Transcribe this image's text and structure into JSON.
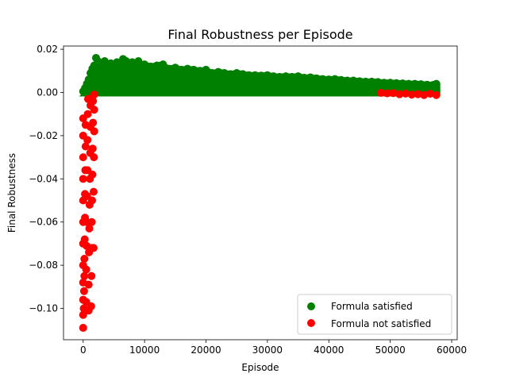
{
  "chart_data": {
    "type": "scatter",
    "title": "Final Robustness per Episode",
    "xlabel": "Episode",
    "ylabel": "Final Robustness",
    "xlim": [
      -3200,
      60900
    ],
    "ylim": [
      -0.1145,
      0.0215
    ],
    "x_ticks": [
      {
        "value": 0,
        "label": "0"
      },
      {
        "value": 10000,
        "label": "10000"
      },
      {
        "value": 20000,
        "label": "20000"
      },
      {
        "value": 30000,
        "label": "30000"
      },
      {
        "value": 40000,
        "label": "40000"
      },
      {
        "value": 50000,
        "label": "50000"
      },
      {
        "value": 60000,
        "label": "60000"
      }
    ],
    "y_ticks": [
      {
        "value": 0.02,
        "label": "0.02"
      },
      {
        "value": 0.0,
        "label": "0.00"
      },
      {
        "value": -0.02,
        "label": "−0.02"
      },
      {
        "value": -0.04,
        "label": "−0.04"
      },
      {
        "value": -0.06,
        "label": "−0.06"
      },
      {
        "value": -0.08,
        "label": "−0.08"
      },
      {
        "value": -0.1,
        "label": "−0.10"
      }
    ],
    "grid": false,
    "legend_position": "lower-right",
    "series": [
      {
        "name": "Formula satisfied",
        "color": "#008000",
        "points": [
          [
            0,
            0.0005
          ],
          [
            300,
            0.002
          ],
          [
            600,
            0.004
          ],
          [
            900,
            0.006
          ],
          [
            1200,
            0.009
          ],
          [
            1500,
            0.011
          ],
          [
            1800,
            0.0125
          ],
          [
            2100,
            0.016
          ],
          [
            2400,
            0.0145
          ],
          [
            2700,
            0.0135
          ],
          [
            3000,
            0.0125
          ],
          [
            3500,
            0.0145
          ],
          [
            4000,
            0.012
          ],
          [
            4500,
            0.0135
          ],
          [
            5000,
            0.0125
          ],
          [
            5500,
            0.014
          ],
          [
            6000,
            0.0125
          ],
          [
            6500,
            0.0155
          ],
          [
            7000,
            0.0145
          ],
          [
            7500,
            0.0135
          ],
          [
            8000,
            0.014
          ],
          [
            8500,
            0.012
          ],
          [
            9000,
            0.0145
          ],
          [
            9500,
            0.0125
          ],
          [
            10000,
            0.013
          ],
          [
            11000,
            0.012
          ],
          [
            12000,
            0.0125
          ],
          [
            13000,
            0.013
          ],
          [
            14000,
            0.011
          ],
          [
            15000,
            0.0115
          ],
          [
            16000,
            0.0105
          ],
          [
            17000,
            0.011
          ],
          [
            18000,
            0.0105
          ],
          [
            19000,
            0.01
          ],
          [
            20000,
            0.0105
          ],
          [
            21000,
            0.009
          ],
          [
            22000,
            0.0095
          ],
          [
            23000,
            0.009
          ],
          [
            24000,
            0.0085
          ],
          [
            25000,
            0.009
          ],
          [
            26000,
            0.0085
          ],
          [
            27000,
            0.008
          ],
          [
            28000,
            0.008
          ],
          [
            29000,
            0.0078
          ],
          [
            30000,
            0.008
          ],
          [
            31000,
            0.0075
          ],
          [
            32000,
            0.0072
          ],
          [
            33000,
            0.0075
          ],
          [
            34000,
            0.0072
          ],
          [
            35000,
            0.0075
          ],
          [
            36000,
            0.0068
          ],
          [
            37000,
            0.007
          ],
          [
            38000,
            0.0065
          ],
          [
            39000,
            0.0062
          ],
          [
            40000,
            0.006
          ],
          [
            41000,
            0.0062
          ],
          [
            42000,
            0.0058
          ],
          [
            43000,
            0.0055
          ],
          [
            44000,
            0.0055
          ],
          [
            45000,
            0.0052
          ],
          [
            46000,
            0.005
          ],
          [
            47000,
            0.005
          ],
          [
            48000,
            0.0048
          ],
          [
            49000,
            0.0045
          ],
          [
            50000,
            0.0045
          ],
          [
            51000,
            0.0043
          ],
          [
            52000,
            0.0042
          ],
          [
            53000,
            0.004
          ],
          [
            54000,
            0.004
          ],
          [
            55000,
            0.0038
          ],
          [
            56000,
            0.0036
          ],
          [
            57000,
            0.0035
          ],
          [
            57500,
            0.004
          ]
        ]
      },
      {
        "name": "Formula not satisfied",
        "color": "#ff0000",
        "points": [
          [
            0,
            -0.109
          ],
          [
            0,
            -0.103
          ],
          [
            0,
            -0.096
          ],
          [
            0,
            -0.088
          ],
          [
            0,
            -0.08
          ],
          [
            0,
            -0.07
          ],
          [
            0,
            -0.06
          ],
          [
            0,
            -0.05
          ],
          [
            0,
            -0.04
          ],
          [
            0,
            -0.03
          ],
          [
            0,
            -0.02
          ],
          [
            0,
            -0.012
          ],
          [
            100,
            -0.1
          ],
          [
            150,
            -0.092
          ],
          [
            200,
            -0.085
          ],
          [
            200,
            -0.077
          ],
          [
            250,
            -0.068
          ],
          [
            300,
            -0.058
          ],
          [
            300,
            -0.047
          ],
          [
            350,
            -0.036
          ],
          [
            400,
            -0.025
          ],
          [
            400,
            -0.015
          ],
          [
            500,
            -0.097
          ],
          [
            500,
            -0.082
          ],
          [
            550,
            -0.071
          ],
          [
            600,
            -0.06
          ],
          [
            650,
            -0.048
          ],
          [
            700,
            -0.036
          ],
          [
            700,
            -0.022
          ],
          [
            750,
            -0.01
          ],
          [
            800,
            -0.003
          ],
          [
            900,
            -0.101
          ],
          [
            900,
            -0.089
          ],
          [
            950,
            -0.074
          ],
          [
            1000,
            -0.063
          ],
          [
            1050,
            -0.052
          ],
          [
            1100,
            -0.04
          ],
          [
            1150,
            -0.028
          ],
          [
            1200,
            -0.016
          ],
          [
            1200,
            -0.006
          ],
          [
            1300,
            -0.099
          ],
          [
            1350,
            -0.085
          ],
          [
            1400,
            -0.072
          ],
          [
            1400,
            -0.06
          ],
          [
            1450,
            -0.05
          ],
          [
            1500,
            -0.038
          ],
          [
            1550,
            -0.026
          ],
          [
            1600,
            -0.014
          ],
          [
            1600,
            -0.004
          ],
          [
            1700,
            -0.072
          ],
          [
            1700,
            -0.046
          ],
          [
            1750,
            -0.03
          ],
          [
            1800,
            -0.018
          ],
          [
            1800,
            -0.008
          ],
          [
            1800,
            -0.001
          ],
          [
            48500,
            -0.0002
          ],
          [
            49500,
            -0.0004
          ],
          [
            50500,
            -0.0003
          ],
          [
            51500,
            -0.0008
          ],
          [
            52500,
            -0.0005
          ],
          [
            53500,
            -0.001
          ],
          [
            54500,
            -0.0008
          ],
          [
            55500,
            -0.0012
          ],
          [
            56500,
            -0.0006
          ],
          [
            57500,
            -0.0012
          ]
        ]
      }
    ]
  }
}
